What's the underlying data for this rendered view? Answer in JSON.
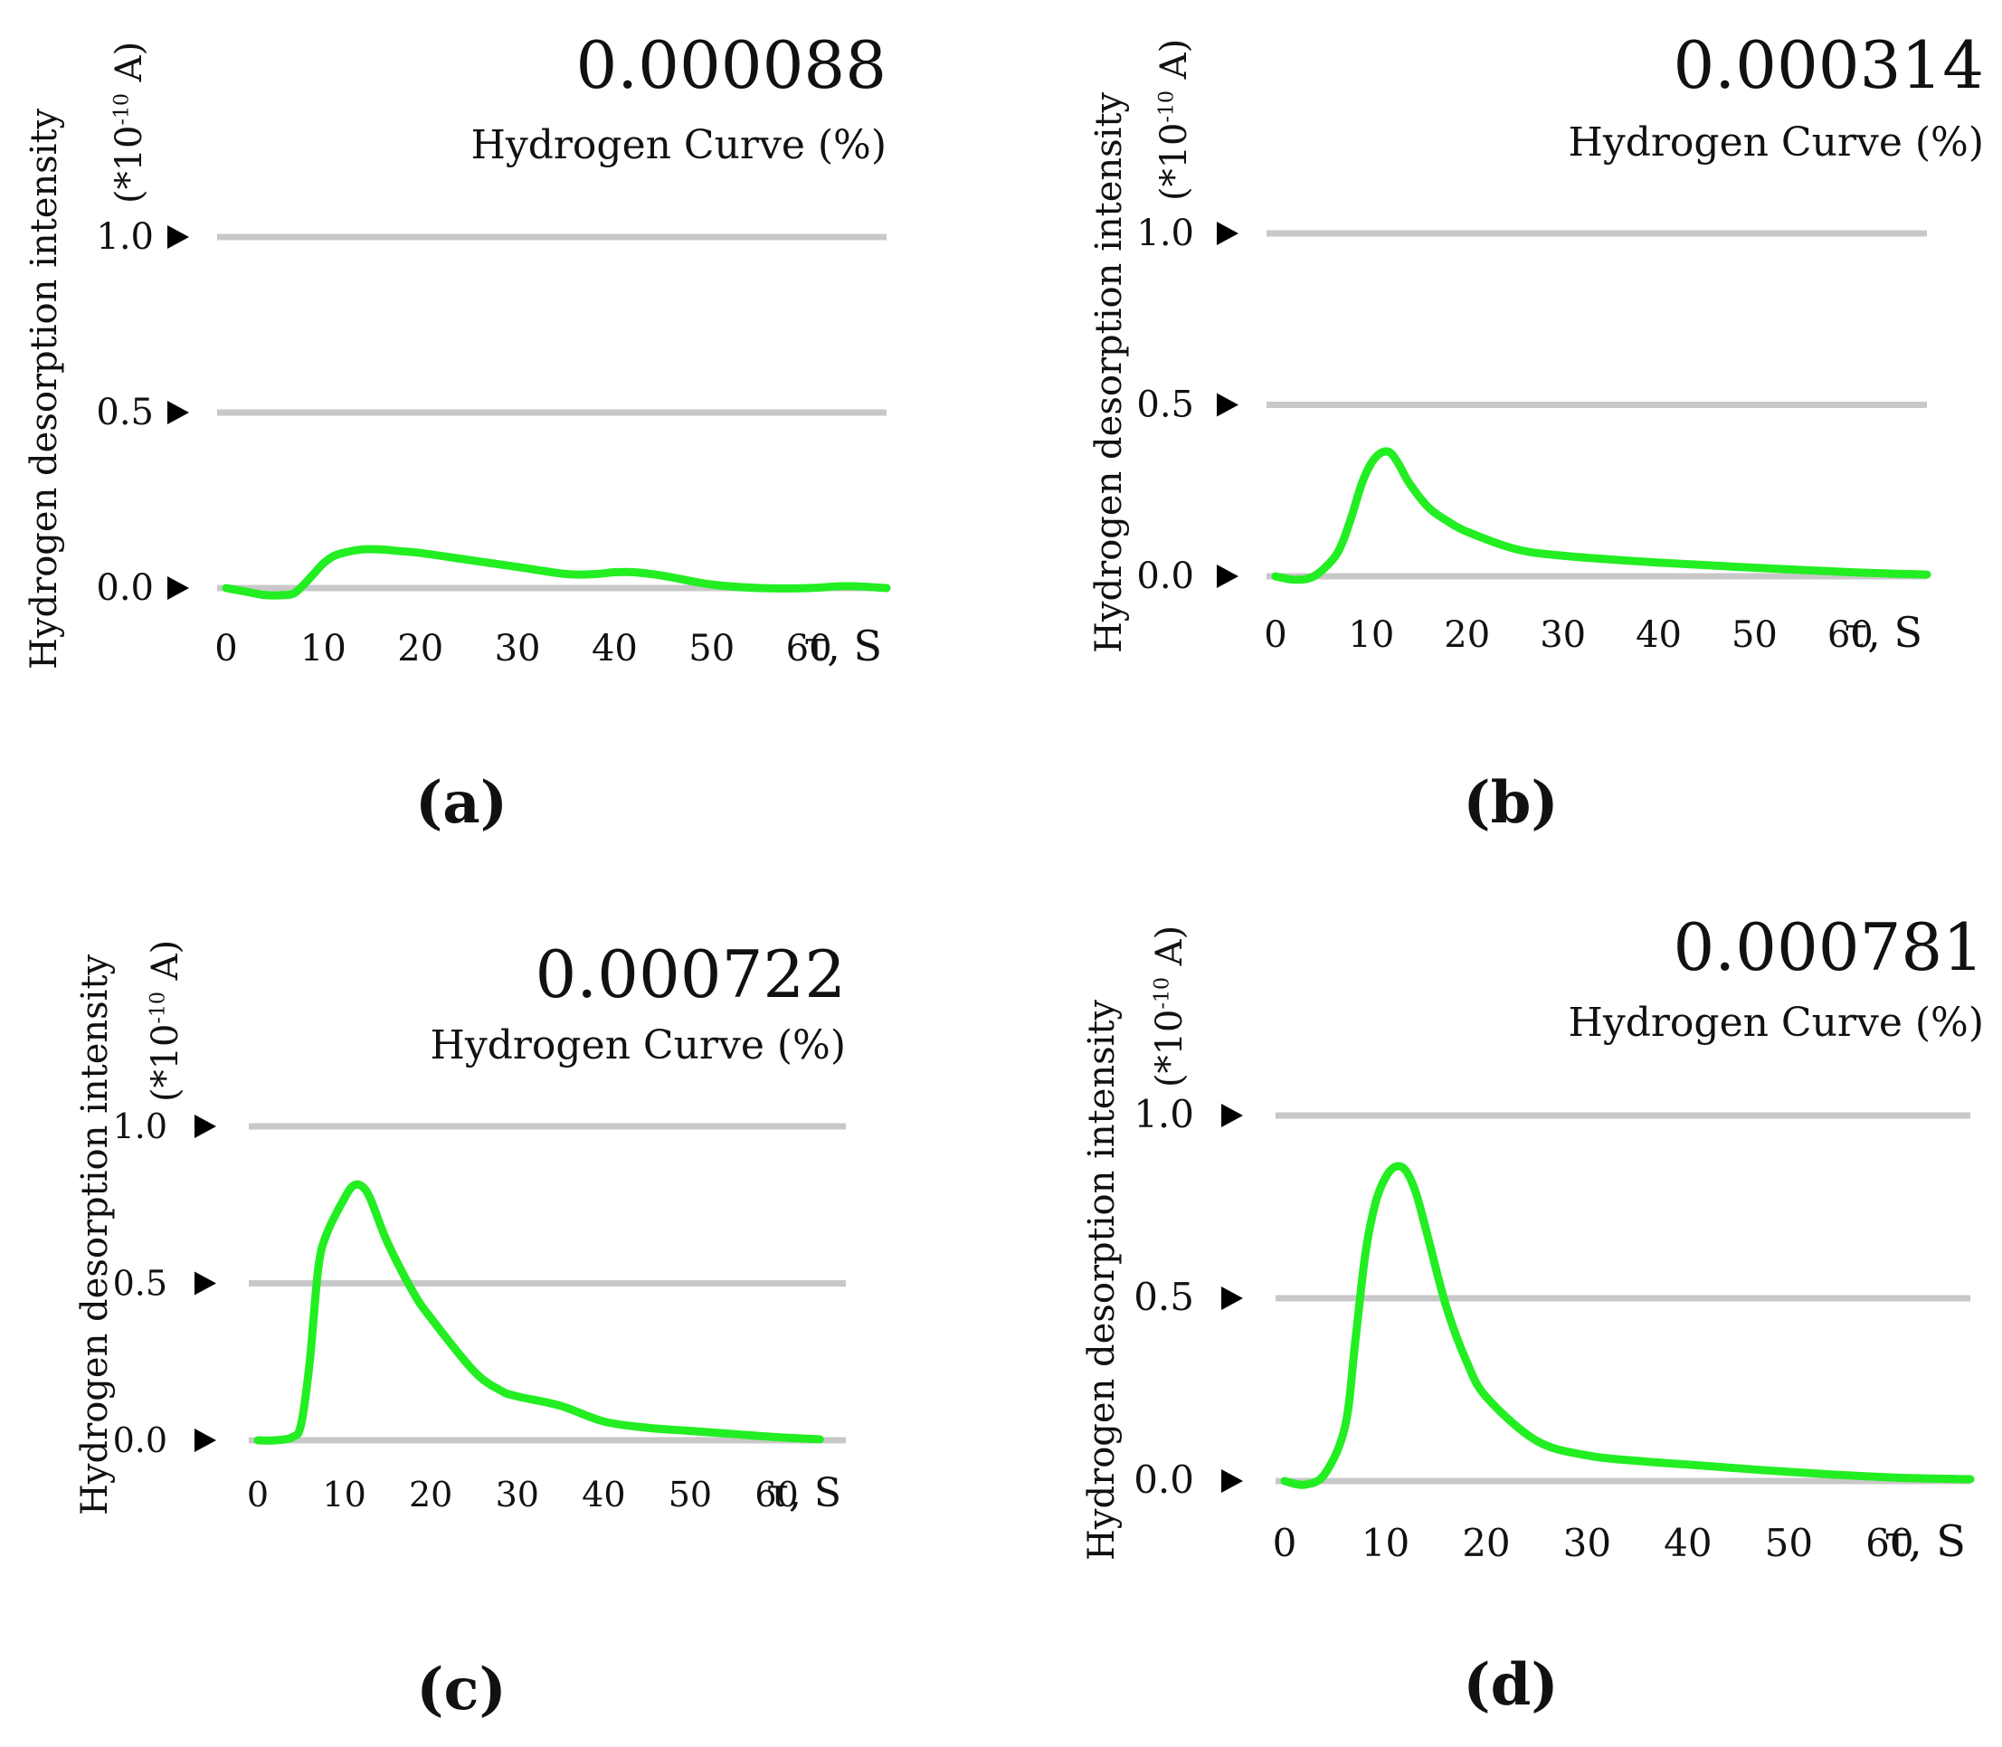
{
  "chart_data": [
    {
      "panel": "(a)",
      "type": "line",
      "title": "0.000088",
      "series_label": "Hydrogen Curve (%)",
      "ylabel": "Hydrogen desorption intensity",
      "yunit": "(*10-10 A)",
      "xlabel": "τ, S",
      "ylim": [
        0,
        1
      ],
      "xlim": [
        0,
        68
      ],
      "yticks": [
        "0.0",
        "0.5",
        "1.0"
      ],
      "xticks": [
        0,
        10,
        20,
        30,
        40,
        50,
        60
      ],
      "line_color": "#22ee22",
      "x": [
        0,
        2,
        4,
        6,
        7,
        8,
        9,
        10,
        11,
        12,
        14,
        16,
        18,
        20,
        25,
        30,
        35,
        38,
        40,
        42,
        45,
        50,
        55,
        60,
        63,
        65,
        68
      ],
      "y": [
        0.0,
        -0.01,
        -0.02,
        -0.02,
        -0.015,
        0.01,
        0.04,
        0.07,
        0.09,
        0.1,
        0.11,
        0.11,
        0.105,
        0.1,
        0.08,
        0.06,
        0.04,
        0.04,
        0.045,
        0.045,
        0.035,
        0.01,
        0.0,
        0.0,
        0.005,
        0.005,
        0.0
      ]
    },
    {
      "panel": "(b)",
      "type": "line",
      "title": "0.000314",
      "series_label": "Hydrogen Curve (%)",
      "ylabel": "Hydrogen desorption intensity",
      "yunit": "(*10-10 A)",
      "xlabel": "τ, S",
      "ylim": [
        0,
        1
      ],
      "xlim": [
        0,
        68
      ],
      "yticks": [
        "0.0",
        "0.5",
        "1.0"
      ],
      "xticks": [
        0,
        10,
        20,
        30,
        40,
        50,
        60
      ],
      "line_color": "#22ee22",
      "x": [
        0,
        2,
        4,
        6,
        7,
        8,
        9,
        10,
        11,
        12,
        13,
        14,
        16,
        18,
        20,
        25,
        30,
        40,
        50,
        60,
        68
      ],
      "y": [
        0.0,
        -0.01,
        0.0,
        0.05,
        0.1,
        0.18,
        0.27,
        0.33,
        0.36,
        0.36,
        0.32,
        0.27,
        0.2,
        0.16,
        0.13,
        0.08,
        0.06,
        0.04,
        0.025,
        0.012,
        0.005
      ]
    },
    {
      "panel": "(c)",
      "type": "line",
      "title": "0.000722",
      "series_label": "Hydrogen Curve (%)",
      "ylabel": "Hydrogen desorption intensity",
      "yunit": "(*10-10 A)",
      "xlabel": "τ, S",
      "ylim": [
        0,
        1
      ],
      "xlim": [
        0,
        68
      ],
      "yticks": [
        "0.0",
        "0.5",
        "1.0"
      ],
      "xticks": [
        0,
        10,
        20,
        30,
        40,
        50,
        60
      ],
      "line_color": "#22ee22",
      "x": [
        0,
        2,
        4,
        5,
        6,
        7,
        8,
        10,
        11,
        12,
        13,
        15,
        18,
        20,
        25,
        28,
        30,
        35,
        40,
        45,
        50,
        55,
        60,
        65
      ],
      "y": [
        0.0,
        0.0,
        0.01,
        0.05,
        0.25,
        0.55,
        0.66,
        0.77,
        0.81,
        0.81,
        0.77,
        0.63,
        0.47,
        0.39,
        0.22,
        0.16,
        0.14,
        0.11,
        0.06,
        0.04,
        0.03,
        0.02,
        0.01,
        0.003
      ]
    },
    {
      "panel": "(d)",
      "type": "line",
      "title": "0.000781",
      "series_label": "Hydrogen Curve (%)",
      "ylabel": "Hydrogen desorption intensity",
      "yunit": "(*10-10 A)",
      "xlabel": "τ, S",
      "ylim": [
        0,
        1
      ],
      "xlim": [
        0,
        68
      ],
      "yticks": [
        "0.0",
        "0.5",
        "1.0"
      ],
      "xticks": [
        0,
        10,
        20,
        30,
        40,
        50,
        60
      ],
      "line_color": "#22ee22",
      "x": [
        0,
        2,
        4,
        6,
        7,
        8,
        9,
        10,
        11,
        12,
        13,
        14,
        16,
        18,
        20,
        25,
        30,
        35,
        40,
        50,
        60,
        68
      ],
      "y": [
        0.0,
        -0.01,
        0.02,
        0.15,
        0.38,
        0.62,
        0.76,
        0.83,
        0.86,
        0.85,
        0.79,
        0.69,
        0.48,
        0.33,
        0.23,
        0.11,
        0.07,
        0.055,
        0.045,
        0.025,
        0.01,
        0.005
      ]
    }
  ]
}
